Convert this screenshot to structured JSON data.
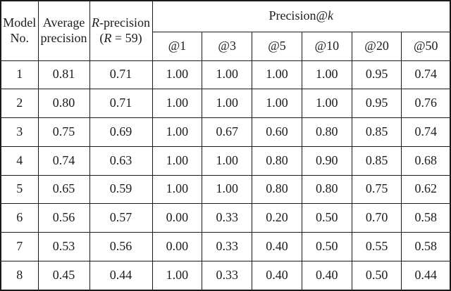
{
  "table": {
    "header": {
      "model_line1": "Model",
      "model_line2": "No.",
      "avg_line1": "Average",
      "avg_line2": "precision",
      "rprec_var": "R",
      "rprec_rest": "-precision",
      "rprec_sub_pre": "(",
      "rprec_sub_var": "R",
      "rprec_sub_rest": " = 59)",
      "patk_main": "Precision@",
      "patk_var": "k",
      "k_cols": [
        "@1",
        "@3",
        "@5",
        "@10",
        "@20",
        "@50"
      ]
    },
    "rows": [
      [
        "1",
        "0.81",
        "0.71",
        "1.00",
        "1.00",
        "1.00",
        "1.00",
        "0.95",
        "0.74"
      ],
      [
        "2",
        "0.80",
        "0.71",
        "1.00",
        "1.00",
        "1.00",
        "1.00",
        "0.95",
        "0.76"
      ],
      [
        "3",
        "0.75",
        "0.69",
        "1.00",
        "0.67",
        "0.60",
        "0.80",
        "0.85",
        "0.74"
      ],
      [
        "4",
        "0.74",
        "0.63",
        "1.00",
        "1.00",
        "0.80",
        "0.90",
        "0.85",
        "0.68"
      ],
      [
        "5",
        "0.65",
        "0.59",
        "1.00",
        "1.00",
        "0.80",
        "0.80",
        "0.75",
        "0.62"
      ],
      [
        "6",
        "0.56",
        "0.57",
        "0.00",
        "0.33",
        "0.20",
        "0.50",
        "0.70",
        "0.58"
      ],
      [
        "7",
        "0.53",
        "0.56",
        "0.00",
        "0.33",
        "0.40",
        "0.50",
        "0.55",
        "0.58"
      ],
      [
        "8",
        "0.45",
        "0.44",
        "1.00",
        "0.33",
        "0.40",
        "0.40",
        "0.50",
        "0.44"
      ]
    ],
    "colors": {
      "border": "#1a1a1a",
      "text": "#1c1c1c",
      "background": "#ffffff"
    }
  }
}
